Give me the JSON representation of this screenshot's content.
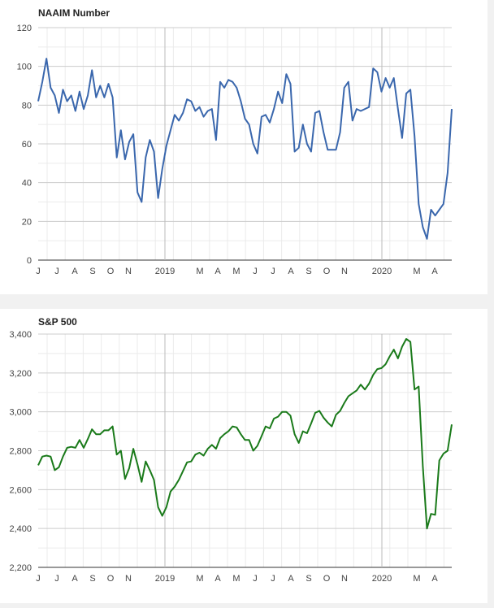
{
  "chart_data": [
    {
      "type": "line",
      "title": "NAAIM Number",
      "xlabel": "",
      "ylabel": "",
      "ylim": [
        0,
        120
      ],
      "yticks": [
        0,
        20,
        40,
        60,
        80,
        100,
        120
      ],
      "ytick_labels": [
        "0",
        "20",
        "40",
        "60",
        "80",
        "100",
        "120"
      ],
      "xtick_labels": [
        "J",
        "J",
        "A",
        "S",
        "O",
        "N",
        "2019",
        "M",
        "A",
        "M",
        "J",
        "J",
        "A",
        "S",
        "O",
        "N",
        "2020",
        "M",
        "A"
      ],
      "grid": true,
      "series": [
        {
          "color": "#3a67ad",
          "values": [
            82,
            92,
            104,
            89,
            85,
            76,
            88,
            82,
            85,
            77,
            87,
            78,
            85,
            98,
            84,
            90,
            84,
            91,
            84,
            53,
            67,
            52,
            61,
            65,
            35,
            30,
            53,
            62,
            56,
            32,
            47,
            59,
            67,
            75,
            72,
            76,
            83,
            82,
            77,
            79,
            74,
            77,
            78,
            62,
            92,
            89,
            93,
            92,
            89,
            82,
            73,
            70,
            60,
            55,
            74,
            75,
            71,
            78,
            87,
            81,
            96,
            91,
            56,
            58,
            70,
            60,
            56,
            76,
            77,
            66,
            57,
            57,
            57,
            66,
            89,
            92,
            72,
            78,
            77,
            78,
            79,
            99,
            97,
            87,
            94,
            89,
            94,
            78,
            63,
            86,
            88,
            64,
            29,
            17,
            11,
            26,
            23,
            26,
            29,
            45,
            78
          ]
        }
      ]
    },
    {
      "type": "line",
      "title": "S&P 500",
      "xlabel": "",
      "ylabel": "",
      "ylim": [
        2200,
        3400
      ],
      "yticks": [
        2200,
        2400,
        2600,
        2800,
        3000,
        3200,
        3400
      ],
      "ytick_labels": [
        "2,200",
        "2,400",
        "2,600",
        "2,800",
        "3,000",
        "3,200",
        "3,400"
      ],
      "xtick_labels": [
        "J",
        "J",
        "A",
        "S",
        "O",
        "N",
        "2019",
        "M",
        "A",
        "M",
        "J",
        "J",
        "A",
        "S",
        "O",
        "N",
        "2020",
        "M",
        "A"
      ],
      "grid": true,
      "series": [
        {
          "color": "#1a7a1a",
          "values": [
            2725,
            2770,
            2775,
            2770,
            2700,
            2715,
            2770,
            2815,
            2820,
            2815,
            2855,
            2815,
            2860,
            2910,
            2885,
            2885,
            2905,
            2905,
            2925,
            2780,
            2800,
            2655,
            2710,
            2810,
            2730,
            2640,
            2745,
            2700,
            2650,
            2510,
            2465,
            2510,
            2590,
            2615,
            2650,
            2695,
            2740,
            2745,
            2780,
            2790,
            2775,
            2810,
            2830,
            2810,
            2865,
            2885,
            2900,
            2925,
            2920,
            2885,
            2855,
            2855,
            2800,
            2825,
            2875,
            2925,
            2915,
            2965,
            2975,
            3000,
            3000,
            2980,
            2885,
            2840,
            2900,
            2890,
            2940,
            2995,
            3005,
            2970,
            2945,
            2925,
            2985,
            3005,
            3045,
            3080,
            3095,
            3110,
            3140,
            3115,
            3145,
            3190,
            3220,
            3225,
            3245,
            3285,
            3320,
            3275,
            3335,
            3375,
            3360,
            3115,
            3130,
            2720,
            2400,
            2475,
            2470,
            2750,
            2785,
            2800,
            2935
          ]
        }
      ]
    }
  ]
}
